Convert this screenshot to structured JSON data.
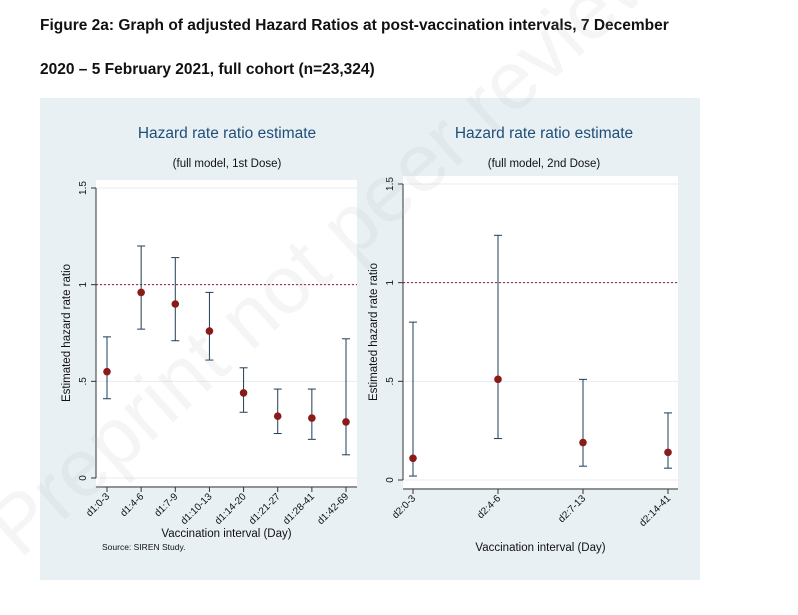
{
  "figure": {
    "title_line1": "Figure 2a: Graph of adjusted Hazard Ratios at post-vaccination intervals, 7 December",
    "title_line2": "2020 – 5 February 2021, full cohort (n=23,324)",
    "source": "Source: SIREN Study."
  },
  "watermark": "Preprint not peer reviewed",
  "colors": {
    "outer_bg": "#e8f0f4",
    "plot_bg": "#ffffff",
    "title": "#1f4e79",
    "point": "#8b1a1a",
    "ci": "#1f3d57",
    "refline": "#8b1a3a",
    "grid": "#e6eef2"
  },
  "chart_data": [
    {
      "type": "scatter",
      "title": "Hazard rate ratio estimate",
      "subtitle": "(full model,  1st Dose)",
      "xlabel": "Vaccination interval (Day)",
      "ylabel": "Estimated hazard rate ratio",
      "ylim": [
        0,
        1.5
      ],
      "yticks": [
        0,
        0.5,
        1,
        1.5
      ],
      "ytick_labels": [
        "0",
        ".5",
        "1",
        "1.5"
      ],
      "reference_line": 1,
      "grid": true,
      "categories": [
        "d1:0-3",
        "d1:4-6",
        "d1:7-9",
        "d1:10-13",
        "d1:14-20",
        "d1:21-27",
        "d1:28-41",
        "d1:42-69"
      ],
      "values": [
        0.55,
        0.96,
        0.9,
        0.76,
        0.44,
        0.32,
        0.31,
        0.29
      ],
      "ci_lower": [
        0.41,
        0.77,
        0.71,
        0.61,
        0.34,
        0.23,
        0.2,
        0.12
      ],
      "ci_upper": [
        0.73,
        1.2,
        1.14,
        0.96,
        0.57,
        0.46,
        0.46,
        0.72
      ]
    },
    {
      "type": "scatter",
      "title": "Hazard rate ratio estimate",
      "subtitle": "(full model,  2nd Dose)",
      "xlabel": "Vaccination interval (Day)",
      "ylabel": "Estimated hazard rate ratio",
      "ylim": [
        0,
        1.5
      ],
      "yticks": [
        0,
        0.5,
        1,
        1.5
      ],
      "ytick_labels": [
        "0",
        ".5",
        "1",
        "1.5"
      ],
      "reference_line": 1,
      "grid": true,
      "categories": [
        "d2:0-3",
        "d2:4-6",
        "d2:7-13",
        "d2:14-41"
      ],
      "values": [
        0.11,
        0.51,
        0.19,
        0.14
      ],
      "ci_lower": [
        0.02,
        0.21,
        0.07,
        0.06
      ],
      "ci_upper": [
        0.8,
        1.24,
        0.51,
        0.34
      ]
    }
  ]
}
